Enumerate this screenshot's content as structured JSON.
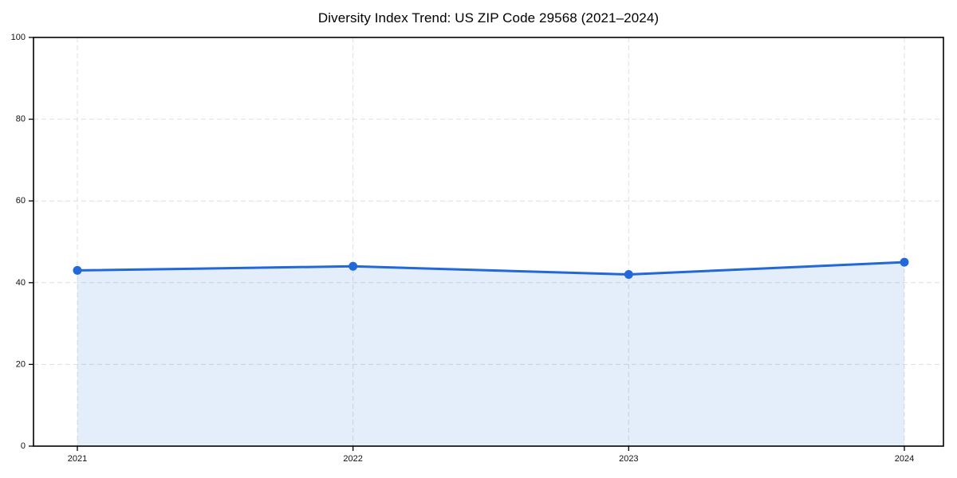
{
  "figure": {
    "background": "#ffffff"
  },
  "chart_data": {
    "type": "line",
    "area_fill": true,
    "title": "Diversity Index Trend: US ZIP Code 29568 (2021–2024)",
    "categories": [
      "2021",
      "2022",
      "2023",
      "2024"
    ],
    "values": [
      43,
      44,
      42,
      45
    ],
    "xlabel": "",
    "ylabel": "",
    "ylim": [
      0,
      100
    ],
    "yticks": [
      0,
      20,
      40,
      60,
      80,
      100
    ],
    "grid": "dashed",
    "legend": "none",
    "line_color": "#2268d9",
    "marker_color": "#2268d9",
    "fill_color": "#2268d9",
    "fill_opacity": 0.12,
    "grid_color": "#dedede",
    "axis_color": "#000000",
    "label_color": "#111111"
  }
}
